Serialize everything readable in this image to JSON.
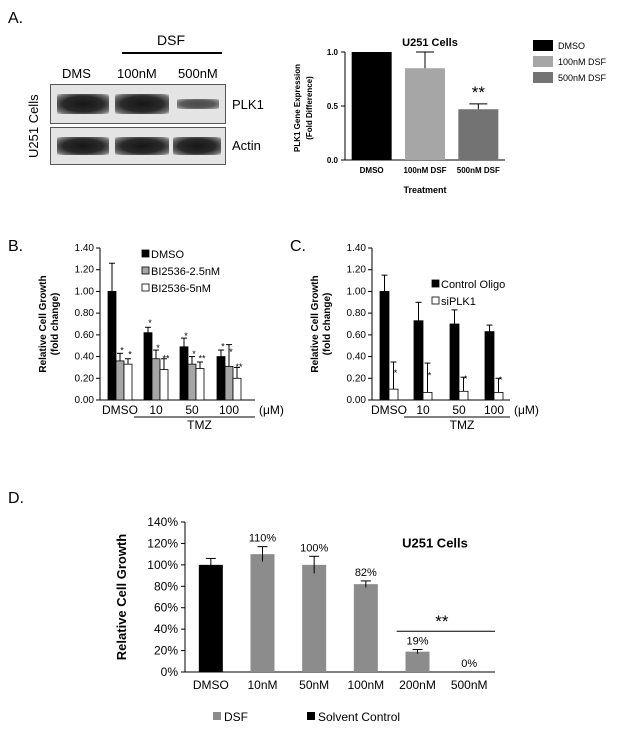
{
  "panels": {
    "a": {
      "letter": "A.",
      "blot": {
        "treatment_header": "DSF",
        "lanes": [
          "DMS",
          "100nM",
          "500nM"
        ],
        "cell_label": "U251 Cells",
        "rows": [
          {
            "label": "PLK1",
            "band_intensity": [
              1.0,
              1.0,
              0.45
            ]
          },
          {
            "label": "Actin",
            "band_intensity": [
              1.0,
              1.0,
              1.0
            ]
          }
        ]
      }
    },
    "b": {
      "letter": "B."
    },
    "c": {
      "letter": "C."
    },
    "d": {
      "letter": "D."
    }
  },
  "chart_data": [
    {
      "id": "A-bar",
      "type": "bar",
      "title": "U251 Cells",
      "xlabel": "Treatment",
      "ylabel": "PLK1 Gene Expression\n(Fold Difference)",
      "ylim": [
        0,
        1.0
      ],
      "yticks": [
        "0.0",
        "0.5",
        "1.0"
      ],
      "categories": [
        "DMSO",
        "100nM DSF",
        "500nM DSF"
      ],
      "values": [
        1.0,
        0.85,
        0.47
      ],
      "errors": [
        0,
        0.15,
        0.05
      ],
      "colors": [
        "#000000",
        "#a6a6a6",
        "#737373"
      ],
      "annotations": [
        {
          "category": "500nM DSF",
          "text": "**"
        }
      ],
      "legend": {
        "position": "top-right",
        "entries": [
          {
            "label": "DMSO",
            "color": "#000000"
          },
          {
            "label": "100nM DSF",
            "color": "#a6a6a6"
          },
          {
            "label": "500nM DSF",
            "color": "#737373"
          }
        ]
      }
    },
    {
      "id": "B-bar",
      "type": "bar",
      "ylabel": "Relative Cell Growth\n(fold change)",
      "ylim": [
        0,
        1.4
      ],
      "yticks": [
        "0.00",
        "0.20",
        "0.40",
        "0.60",
        "0.80",
        "1.00",
        "1.20",
        "1.40"
      ],
      "categories": [
        "DMSO",
        "10",
        "50",
        "100"
      ],
      "unit_label": "(μM)",
      "group_label": "TMZ",
      "series": [
        {
          "name": "DMSO",
          "color": "#000000",
          "values": [
            1.0,
            0.62,
            0.49,
            0.4
          ],
          "errors": [
            0.26,
            0.05,
            0.08,
            0.06
          ],
          "stars": [
            "",
            "*",
            "*",
            "*"
          ]
        },
        {
          "name": "BI2536-2.5nM",
          "color": "#a6a6a6",
          "values": [
            0.36,
            0.38,
            0.33,
            0.31
          ],
          "errors": [
            0.07,
            0.08,
            0.07,
            0.2
          ],
          "stars": [
            "*",
            "*",
            "*",
            "*"
          ]
        },
        {
          "name": "BI2536-5nM",
          "color": "#ffffff",
          "values": [
            0.33,
            0.28,
            0.29,
            0.2
          ],
          "errors": [
            0.05,
            0.1,
            0.06,
            0.1
          ],
          "stars": [
            "*",
            "**",
            "**",
            "**"
          ]
        }
      ],
      "legend": {
        "position": "top-right"
      }
    },
    {
      "id": "C-bar",
      "type": "bar",
      "ylabel": "Relative Cell Growth\n(fold change)",
      "ylim": [
        0,
        1.4
      ],
      "yticks": [
        "0.00",
        "0.20",
        "0.40",
        "0.60",
        "0.80",
        "1.00",
        "1.20",
        "1.40"
      ],
      "categories": [
        "DMSO",
        "10",
        "50",
        "100"
      ],
      "unit_label": "(μM)",
      "group_label": "TMZ",
      "series": [
        {
          "name": "Control Oligo",
          "color": "#000000",
          "values": [
            1.0,
            0.73,
            0.7,
            0.63
          ],
          "errors": [
            0.15,
            0.17,
            0.13,
            0.06
          ],
          "stars": [
            "",
            "",
            "",
            ""
          ]
        },
        {
          "name": "siPLK1",
          "color": "#ffffff",
          "values": [
            0.1,
            0.07,
            0.08,
            0.07
          ],
          "errors": [
            0.25,
            0.27,
            0.13,
            0.13
          ],
          "stars": [
            "*",
            "*",
            "*",
            "*"
          ]
        }
      ],
      "legend": {
        "position": "top-right"
      }
    },
    {
      "id": "D-bar",
      "type": "bar",
      "title": "U251 Cells",
      "ylabel": "Relative Cell Growth",
      "ylim": [
        0,
        140
      ],
      "yticks": [
        "0%",
        "20%",
        "40%",
        "60%",
        "80%",
        "100%",
        "120%",
        "140%"
      ],
      "categories": [
        "DMSO",
        "10nM",
        "50nM",
        "100nM",
        "200nM",
        "500nM"
      ],
      "values": [
        100,
        110,
        100,
        82,
        19,
        0
      ],
      "errors": [
        6,
        7,
        8,
        3,
        2,
        0
      ],
      "colors": [
        "#000000",
        "#8c8c8c",
        "#8c8c8c",
        "#8c8c8c",
        "#8c8c8c",
        "#8c8c8c"
      ],
      "data_labels": [
        "",
        "110%",
        "100%",
        "82%",
        "19%",
        "0%"
      ],
      "significance": {
        "text": "**",
        "from": "200nM",
        "to": "500nM"
      },
      "legend": {
        "position": "bottom",
        "entries": [
          {
            "label": "DSF",
            "color": "#8c8c8c"
          },
          {
            "label": "Solvent Control",
            "color": "#000000"
          }
        ]
      }
    }
  ]
}
